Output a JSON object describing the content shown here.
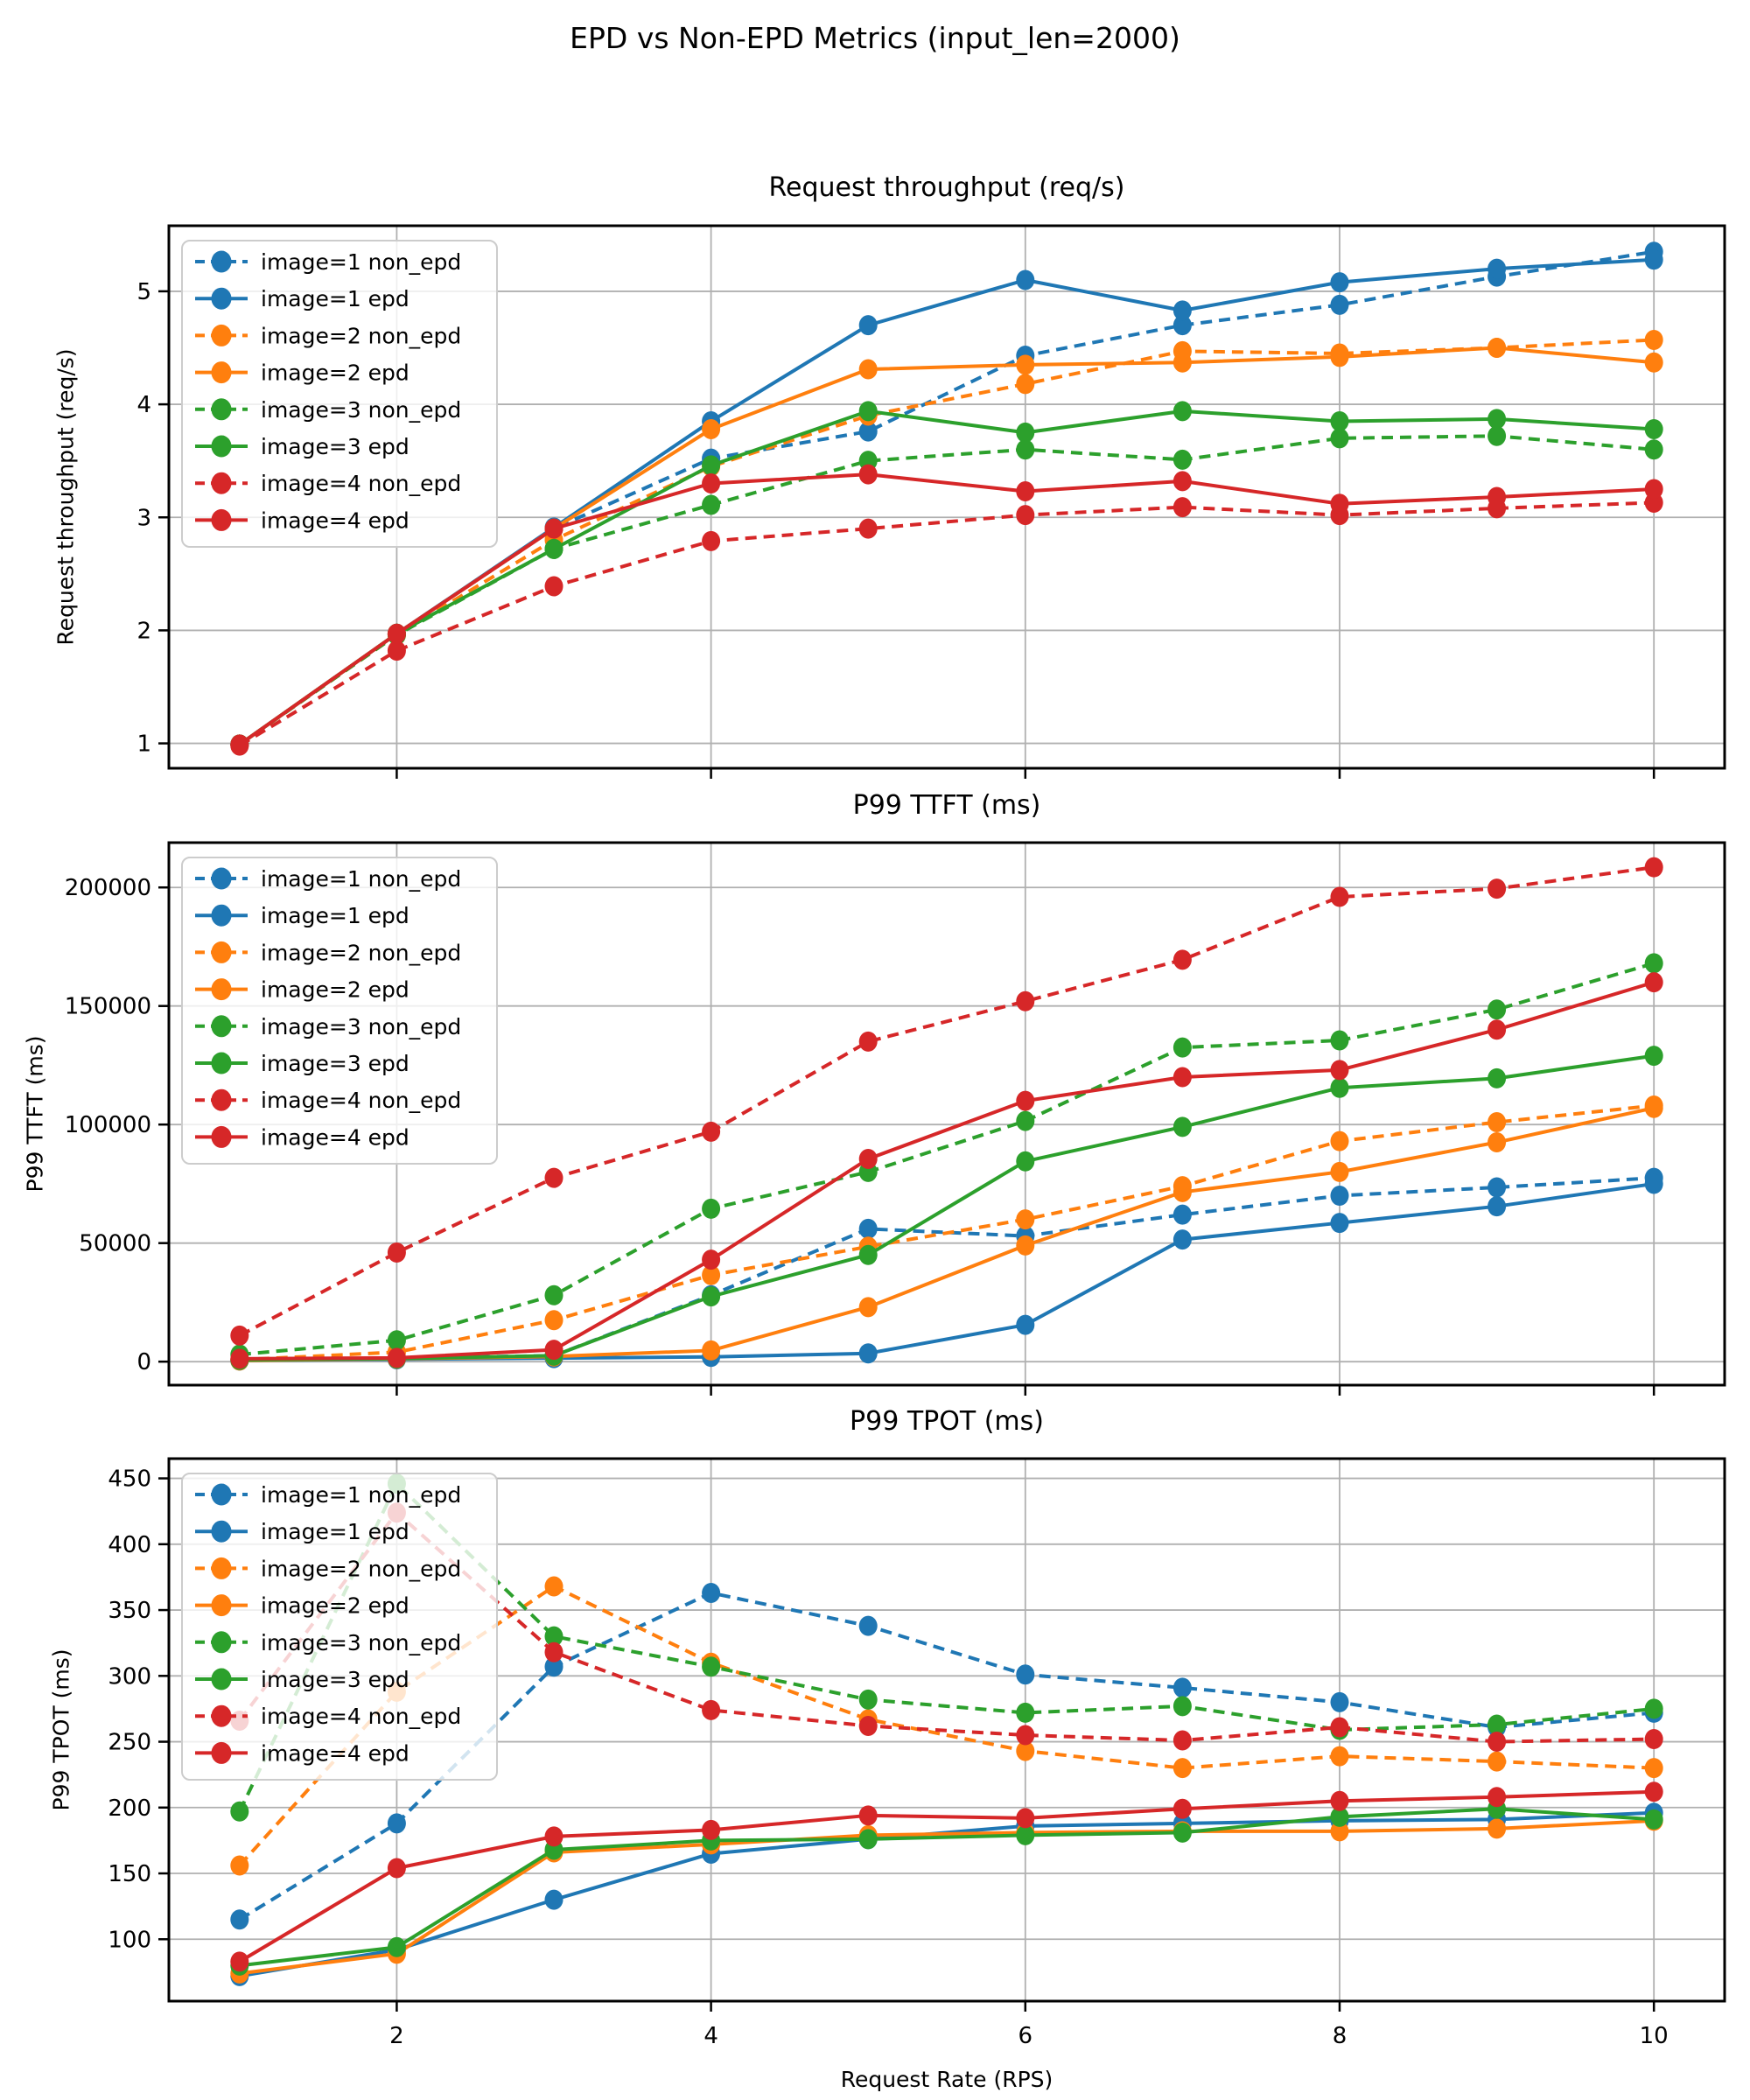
{
  "figure": {
    "title": "EPD vs Non-EPD Metrics (input_len=2000)",
    "xlabel": "Request Rate (RPS)",
    "background_color": "#ffffff",
    "grid_color": "#b0b0b0",
    "text_color": "#000000",
    "legend_border_color": "#cccccc"
  },
  "chart_data": [
    {
      "type": "line",
      "title": "Request throughput (req/s)",
      "ylabel": "Request throughput (req/s)",
      "xlabel": "",
      "x": [
        1,
        2,
        3,
        4,
        5,
        6,
        7,
        8,
        9,
        10
      ],
      "xticks": [
        2,
        4,
        6,
        8,
        10
      ],
      "show_x_tick_labels": false,
      "xlim": [
        0.55,
        10.45
      ],
      "yticks": [
        1,
        2,
        3,
        4,
        5
      ],
      "ylim": [
        0.78,
        5.58
      ],
      "grid": true,
      "legend_position": "upper-left",
      "series": [
        {
          "name": "image=1 non_epd",
          "color": "#1f77b4",
          "style": "dashed",
          "values": [
            0.99,
            1.97,
            2.9,
            3.52,
            3.76,
            4.43,
            4.7,
            4.88,
            5.13,
            5.35
          ]
        },
        {
          "name": "image=1 epd",
          "color": "#1f77b4",
          "style": "solid",
          "values": [
            0.99,
            1.97,
            2.91,
            3.85,
            4.7,
            5.1,
            4.83,
            5.08,
            5.2,
            5.28
          ]
        },
        {
          "name": "image=2 non_epd",
          "color": "#ff7f0e",
          "style": "dashed",
          "values": [
            0.99,
            1.96,
            2.8,
            3.45,
            3.9,
            4.18,
            4.47,
            4.45,
            4.5,
            4.57
          ]
        },
        {
          "name": "image=2 epd",
          "color": "#ff7f0e",
          "style": "solid",
          "values": [
            0.99,
            1.97,
            2.9,
            3.78,
            4.31,
            4.35,
            4.37,
            4.42,
            4.5,
            4.37
          ]
        },
        {
          "name": "image=3 non_epd",
          "color": "#2ca02c",
          "style": "dashed",
          "values": [
            0.99,
            1.96,
            2.72,
            3.11,
            3.5,
            3.6,
            3.51,
            3.7,
            3.72,
            3.6
          ]
        },
        {
          "name": "image=3 epd",
          "color": "#2ca02c",
          "style": "solid",
          "values": [
            0.99,
            1.97,
            2.72,
            3.46,
            3.94,
            3.75,
            3.94,
            3.85,
            3.87,
            3.78
          ]
        },
        {
          "name": "image=4 non_epd",
          "color": "#d62728",
          "style": "dashed",
          "values": [
            0.98,
            1.82,
            2.39,
            2.79,
            2.9,
            3.02,
            3.09,
            3.02,
            3.08,
            3.13
          ]
        },
        {
          "name": "image=4 epd",
          "color": "#d62728",
          "style": "solid",
          "values": [
            0.99,
            1.97,
            2.9,
            3.3,
            3.38,
            3.23,
            3.32,
            3.12,
            3.18,
            3.25
          ]
        }
      ]
    },
    {
      "type": "line",
      "title": "P99 TTFT (ms)",
      "ylabel": "P99 TTFT (ms)",
      "xlabel": "",
      "x": [
        1,
        2,
        3,
        4,
        5,
        6,
        7,
        8,
        9,
        10
      ],
      "xticks": [
        2,
        4,
        6,
        8,
        10
      ],
      "show_x_tick_labels": false,
      "xlim": [
        0.55,
        10.45
      ],
      "yticks": [
        0,
        50000,
        100000,
        150000,
        200000
      ],
      "ylim": [
        -9900,
        218900
      ],
      "grid": true,
      "legend_position": "upper-left",
      "series": [
        {
          "name": "image=1 non_epd",
          "color": "#1f77b4",
          "style": "dashed",
          "values": [
            600,
            1500,
            2500,
            28000,
            56000,
            53000,
            62000,
            70000,
            73500,
            77500
          ]
        },
        {
          "name": "image=1 epd",
          "color": "#1f77b4",
          "style": "solid",
          "values": [
            500,
            1000,
            1500,
            2000,
            3500,
            15500,
            51500,
            58500,
            65500,
            75000
          ]
        },
        {
          "name": "image=2 non_epd",
          "color": "#ff7f0e",
          "style": "dashed",
          "values": [
            800,
            4000,
            17500,
            36500,
            48500,
            60000,
            74000,
            93000,
            101000,
            108000
          ]
        },
        {
          "name": "image=2 epd",
          "color": "#ff7f0e",
          "style": "solid",
          "values": [
            500,
            1200,
            2200,
            4700,
            23000,
            49000,
            71500,
            80000,
            92500,
            107000
          ]
        },
        {
          "name": "image=3 non_epd",
          "color": "#2ca02c",
          "style": "dashed",
          "values": [
            3000,
            9000,
            28000,
            64500,
            80000,
            101500,
            132500,
            135500,
            148500,
            168000
          ]
        },
        {
          "name": "image=3 epd",
          "color": "#2ca02c",
          "style": "solid",
          "values": [
            700,
            1300,
            2500,
            27500,
            45000,
            84500,
            99000,
            115500,
            119500,
            129000
          ]
        },
        {
          "name": "image=4 non_epd",
          "color": "#d62728",
          "style": "dashed",
          "values": [
            11000,
            46000,
            77500,
            97000,
            135000,
            152000,
            169500,
            196000,
            199500,
            208500
          ]
        },
        {
          "name": "image=4 epd",
          "color": "#d62728",
          "style": "solid",
          "values": [
            1200,
            1600,
            5000,
            43000,
            85500,
            110000,
            120000,
            123000,
            140000,
            160000
          ]
        }
      ]
    },
    {
      "type": "line",
      "title": "P99 TPOT (ms)",
      "ylabel": "P99 TPOT (ms)",
      "xlabel": "Request Rate (RPS)",
      "x": [
        1,
        2,
        3,
        4,
        5,
        6,
        7,
        8,
        9,
        10
      ],
      "xticks": [
        2,
        4,
        6,
        8,
        10
      ],
      "show_x_tick_labels": true,
      "xlim": [
        0.55,
        10.45
      ],
      "yticks": [
        100,
        150,
        200,
        250,
        300,
        350,
        400,
        450
      ],
      "ylim": [
        53,
        465
      ],
      "grid": true,
      "legend_position": "upper-left",
      "series": [
        {
          "name": "image=1 non_epd",
          "color": "#1f77b4",
          "style": "dashed",
          "values": [
            115,
            188,
            307,
            363,
            338,
            301,
            291,
            280,
            261,
            272
          ]
        },
        {
          "name": "image=1 epd",
          "color": "#1f77b4",
          "style": "solid",
          "values": [
            72,
            92,
            130,
            165,
            176,
            186,
            188,
            190,
            191,
            196
          ]
        },
        {
          "name": "image=2 non_epd",
          "color": "#ff7f0e",
          "style": "dashed",
          "values": [
            156,
            288,
            368,
            310,
            267,
            243,
            230,
            239,
            235,
            230
          ]
        },
        {
          "name": "image=2 epd",
          "color": "#ff7f0e",
          "style": "solid",
          "values": [
            74,
            89,
            166,
            172,
            179,
            181,
            182,
            182,
            184,
            190
          ]
        },
        {
          "name": "image=3 non_epd",
          "color": "#2ca02c",
          "style": "dashed",
          "values": [
            197,
            446,
            330,
            307,
            282,
            272,
            277,
            259,
            263,
            275
          ]
        },
        {
          "name": "image=3 epd",
          "color": "#2ca02c",
          "style": "solid",
          "values": [
            80,
            94,
            168,
            175,
            176,
            179,
            181,
            193,
            199,
            191
          ]
        },
        {
          "name": "image=4 non_epd",
          "color": "#d62728",
          "style": "dashed",
          "values": [
            266,
            424,
            318,
            274,
            262,
            255,
            251,
            261,
            250,
            252
          ]
        },
        {
          "name": "image=4 epd",
          "color": "#d62728",
          "style": "solid",
          "values": [
            83,
            154,
            178,
            183,
            194,
            192,
            199,
            205,
            208,
            212
          ]
        }
      ]
    }
  ]
}
